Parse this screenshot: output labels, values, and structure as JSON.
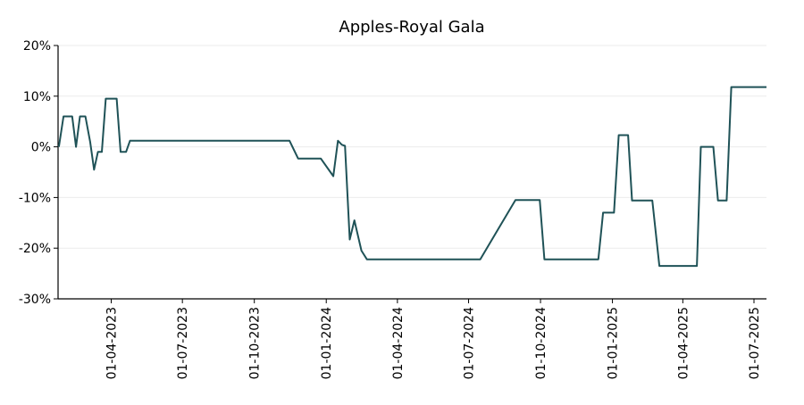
{
  "chart_data": {
    "type": "line",
    "title": "Apples-Royal Gala",
    "xlabel": "",
    "ylabel": "",
    "ylim": [
      -30,
      20
    ],
    "y_ticks": [
      -30,
      -20,
      -10,
      0,
      10,
      20
    ],
    "y_tick_labels": [
      "-30%",
      "-20%",
      "-10%",
      "0%",
      "10%",
      "20%"
    ],
    "x_range": [
      "2023-01-23",
      "2025-07-17"
    ],
    "x_ticks": [
      "2023-04-01",
      "2023-07-01",
      "2023-10-01",
      "2024-01-01",
      "2024-04-01",
      "2024-07-01",
      "2024-10-01",
      "2025-01-01",
      "2025-04-01",
      "2025-07-01"
    ],
    "x_tick_labels": [
      "01-04-2023",
      "01-07-2023",
      "01-10-2023",
      "01-01-2024",
      "01-04-2024",
      "01-07-2024",
      "01-10-2024",
      "01-01-2025",
      "01-04-2025",
      "01-07-2025"
    ],
    "grid": "horizontal",
    "line_color": "#1f5257",
    "series": [
      {
        "points": [
          [
            "2023-01-24",
            0
          ],
          [
            "2023-01-30",
            6
          ],
          [
            "2023-02-10",
            6
          ],
          [
            "2023-02-15",
            0
          ],
          [
            "2023-02-20",
            6
          ],
          [
            "2023-02-27",
            6
          ],
          [
            "2023-03-05",
            1
          ],
          [
            "2023-03-10",
            -4.5
          ],
          [
            "2023-03-15",
            -1
          ],
          [
            "2023-03-20",
            -1
          ],
          [
            "2023-03-25",
            9.5
          ],
          [
            "2023-04-08",
            9.5
          ],
          [
            "2023-04-13",
            -1
          ],
          [
            "2023-04-20",
            -1
          ],
          [
            "2023-04-25",
            1.2
          ],
          [
            "2023-11-15",
            1.2
          ],
          [
            "2023-11-26",
            -2.3
          ],
          [
            "2023-12-25",
            -2.3
          ],
          [
            "2024-01-10",
            -5.8
          ],
          [
            "2024-01-16",
            1.2
          ],
          [
            "2024-01-21",
            0.4
          ],
          [
            "2024-01-25",
            0.2
          ],
          [
            "2024-01-31",
            -18.3
          ],
          [
            "2024-02-06",
            -14.5
          ],
          [
            "2024-02-15",
            -20.5
          ],
          [
            "2024-02-22",
            -22.2
          ],
          [
            "2024-07-16",
            -22.2
          ],
          [
            "2024-08-30",
            -10.5
          ],
          [
            "2024-09-30",
            -10.5
          ],
          [
            "2024-10-06",
            -22.2
          ],
          [
            "2024-12-14",
            -22.2
          ],
          [
            "2024-12-20",
            -13
          ],
          [
            "2025-01-03",
            -13
          ],
          [
            "2025-01-09",
            2.3
          ],
          [
            "2025-01-21",
            2.3
          ],
          [
            "2025-01-26",
            -10.6
          ],
          [
            "2025-02-21",
            -10.6
          ],
          [
            "2025-03-02",
            -23.5
          ],
          [
            "2025-03-30",
            -23.5
          ],
          [
            "2025-04-19",
            -23.5
          ],
          [
            "2025-04-24",
            0
          ],
          [
            "2025-05-10",
            0
          ],
          [
            "2025-05-16",
            -10.6
          ],
          [
            "2025-05-27",
            -10.6
          ],
          [
            "2025-06-02",
            11.8
          ],
          [
            "2025-07-17",
            11.8
          ]
        ]
      }
    ]
  }
}
